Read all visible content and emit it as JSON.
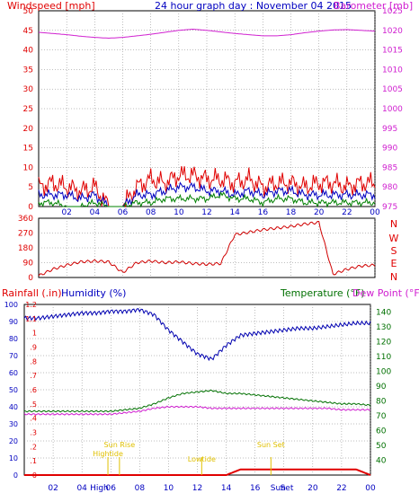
{
  "header": {
    "title": "24 hour graph day : November 04 2015",
    "left_label": "Windspeed [mph]",
    "right_label": "Barometer [mb]"
  },
  "colors": {
    "wind_red": "#e00000",
    "wind_blue": "#0000c0",
    "wind_green": "#008000",
    "baro": "#d020d0",
    "dir": "#d00000",
    "hum": "#0000b0",
    "temp": "#007000",
    "dew": "#d020d0",
    "rain": "#e00000",
    "event": "#e0c000",
    "axis_left": "#e00000",
    "axis_right": "#d020d0",
    "blue_axis": "#0000c0",
    "grid": "#7f7f7f"
  },
  "x_ticks": [
    "02",
    "04",
    "06",
    "08",
    "10",
    "12",
    "14",
    "16",
    "18",
    "20",
    "22",
    "00"
  ],
  "lower_x_ticks": [
    "02",
    "04",
    "High",
    "06",
    "08",
    "10",
    "12",
    "14",
    "16",
    "Sun",
    "Set",
    "20",
    "22",
    "00"
  ],
  "chart_data": [
    {
      "type": "line",
      "panel": "wind-barometer",
      "title": "24 hour graph day : November 04 2015",
      "ylabel_left": "Windspeed [mph]",
      "ylabel_right": "Barometer [mb]",
      "ylim_left": [
        0,
        50
      ],
      "ylim_right": [
        975,
        1025
      ],
      "yticks_left": [
        0,
        5,
        10,
        15,
        20,
        25,
        30,
        35,
        40,
        45,
        50
      ],
      "yticks_right": [
        975,
        980,
        985,
        990,
        995,
        1000,
        1005,
        1010,
        1015,
        1020,
        1025
      ],
      "x_hours": [
        0,
        1,
        2,
        3,
        4,
        5,
        6,
        7,
        8,
        9,
        10,
        11,
        12,
        13,
        14,
        15,
        16,
        17,
        18,
        19,
        20,
        21,
        22,
        23,
        24
      ],
      "series": [
        {
          "axis": "right",
          "color": "baro",
          "values": [
            1019.5,
            1019.2,
            1018.9,
            1018.5,
            1018.2,
            1018.0,
            1018.2,
            1018.6,
            1019.0,
            1019.5,
            1020.0,
            1020.3,
            1020.0,
            1019.6,
            1019.2,
            1018.9,
            1018.6,
            1018.6,
            1018.9,
            1019.4,
            1019.8,
            1020.1,
            1020.2,
            1020.0,
            1019.8
          ]
        },
        {
          "axis": "left",
          "color": "wind_red",
          "values": [
            5,
            6,
            5,
            4,
            5,
            0,
            0,
            5,
            7,
            6,
            8,
            8,
            7,
            7,
            6,
            7,
            5,
            6,
            6,
            5,
            6,
            6,
            5,
            6,
            6
          ]
        },
        {
          "axis": "left",
          "color": "wind_blue",
          "values": [
            3,
            3,
            3,
            2,
            3,
            0,
            0,
            3,
            3,
            4,
            5,
            5,
            4,
            4,
            3,
            4,
            3,
            4,
            4,
            3,
            3,
            3,
            3,
            3,
            3
          ]
        },
        {
          "axis": "left",
          "color": "wind_green",
          "values": [
            1,
            1,
            0,
            0,
            1,
            0,
            0,
            1,
            1,
            2,
            2,
            2,
            2,
            3,
            2,
            2,
            1,
            2,
            2,
            1,
            1,
            1,
            1,
            1,
            1
          ]
        }
      ]
    },
    {
      "type": "line",
      "panel": "wind-direction",
      "ylim": [
        0,
        360
      ],
      "yticks": [
        0,
        90,
        180,
        270,
        360
      ],
      "compass_labels": [
        "N",
        "W",
        "S",
        "E",
        "N"
      ],
      "x_hours": [
        0,
        1,
        2,
        3,
        4,
        5,
        6,
        7,
        8,
        9,
        10,
        11,
        12,
        13,
        14,
        15,
        16,
        17,
        18,
        19,
        20,
        21,
        22,
        23,
        24
      ],
      "series": [
        {
          "color": "dir",
          "values": [
            10,
            50,
            75,
            95,
            100,
            95,
            30,
            90,
            100,
            90,
            95,
            85,
            80,
            85,
            260,
            275,
            290,
            300,
            310,
            325,
            335,
            20,
            50,
            70,
            75
          ]
        }
      ]
    },
    {
      "type": "line",
      "panel": "humidity-temperature",
      "ylabel_left": "Rainfall (.in)",
      "ylabel_left2": "Humidity (%)",
      "ylabel_right": "Temperature (°F)",
      "ylabel_right2": "Dew Point (°F)",
      "yticks_humidity": [
        0,
        10,
        20,
        30,
        40,
        50,
        60,
        70,
        80,
        90,
        100
      ],
      "yticks_rain": [
        0,
        0.1,
        0.2,
        0.3,
        0.4,
        0.5,
        0.6,
        0.7,
        0.8,
        0.9,
        1,
        1.1,
        1.2
      ],
      "ytick_labels_rain": [
        "0",
        ".1",
        ".2",
        ".3",
        ".4",
        ".5",
        ".6",
        ".7",
        ".8",
        ".9",
        "1",
        "1.1",
        "1.2"
      ],
      "yticks_temp": [
        40,
        50,
        60,
        70,
        80,
        90,
        100,
        110,
        120,
        130,
        140
      ],
      "ylim_humidity": [
        0,
        100
      ],
      "ylim_temp": [
        30,
        145
      ],
      "x_hours": [
        0,
        1,
        2,
        3,
        4,
        5,
        6,
        7,
        8,
        9,
        10,
        11,
        12,
        13,
        14,
        15,
        16,
        17,
        18,
        19,
        20,
        21,
        22,
        23,
        24
      ],
      "series": [
        {
          "name": "Humidity (%)",
          "color": "hum",
          "values": [
            92,
            92,
            93,
            94,
            95,
            95,
            96,
            96,
            97,
            94,
            85,
            78,
            71,
            68,
            76,
            82,
            83,
            84,
            85,
            86,
            86,
            87,
            88,
            89,
            89
          ]
        },
        {
          "name": "Temperature (°F)",
          "color": "temp",
          "values": [
            73,
            73,
            73,
            73,
            73,
            73,
            73,
            74,
            75,
            78,
            82,
            85,
            86,
            87,
            85,
            85,
            84,
            83,
            82,
            81,
            80,
            79,
            78,
            78,
            77
          ]
        },
        {
          "name": "Dew Point (°F)",
          "color": "dew",
          "values": [
            71,
            71,
            71,
            71,
            71,
            71,
            71,
            72,
            73,
            75,
            76,
            76,
            76,
            75,
            75,
            75,
            75,
            75,
            75,
            75,
            75,
            75,
            74,
            74,
            74
          ]
        },
        {
          "name": "Rainfall (.in)",
          "color": "rain",
          "values": [
            0,
            0,
            0,
            0,
            0,
            0,
            0,
            0,
            0,
            0,
            0,
            0,
            0,
            0,
            0,
            0.04,
            0.04,
            0.04,
            0.04,
            0.04,
            0.04,
            0.04,
            0.04,
            0.04,
            0
          ]
        }
      ],
      "events": [
        {
          "label": "Sun Rise",
          "hour": 6.6
        },
        {
          "label": "Hightide",
          "hour": 5.8
        },
        {
          "label": "Lowtide",
          "hour": 12.3
        },
        {
          "label": "Sun Set",
          "hour": 17.1
        }
      ]
    }
  ]
}
